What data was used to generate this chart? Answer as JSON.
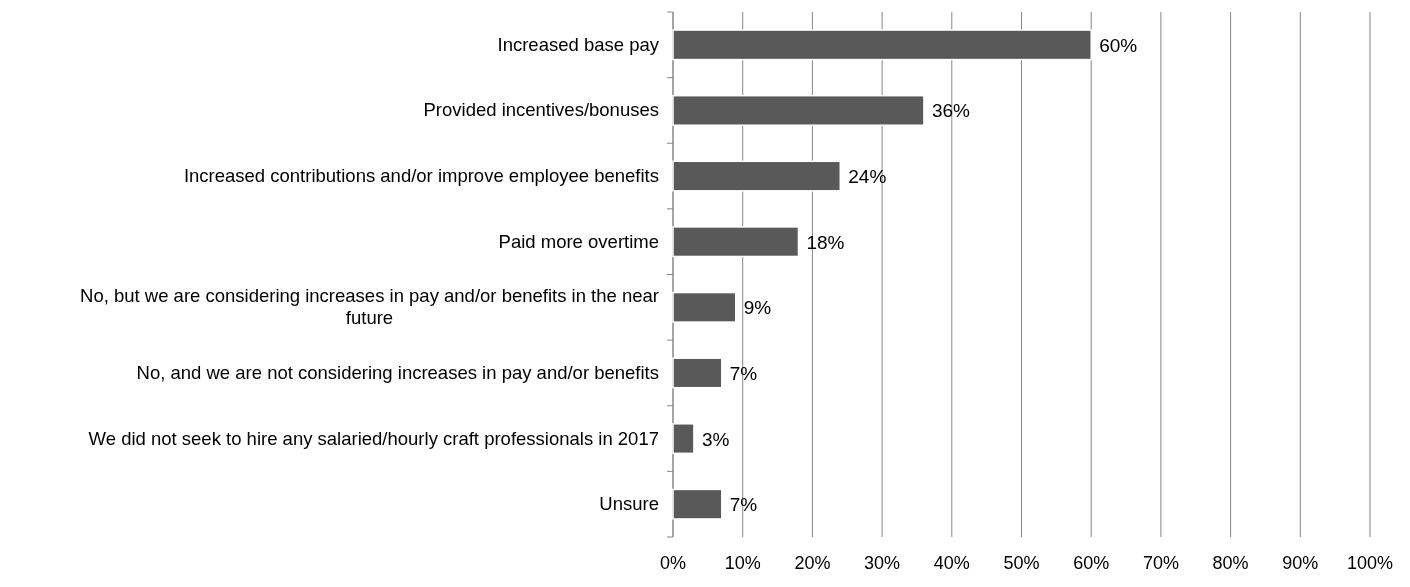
{
  "chart_data": {
    "type": "bar",
    "orientation": "horizontal",
    "categories": [
      "Increased base pay",
      "Provided incentives/bonuses",
      "Increased contributions and/or improve employee benefits",
      "Paid more overtime",
      "No, but we are considering increases in pay and/or benefits in the near future",
      "No, and we are not considering increases in pay and/or benefits",
      "We did not seek to hire any salaried/hourly craft professionals in 2017",
      "Unsure"
    ],
    "values": [
      60,
      36,
      24,
      18,
      9,
      7,
      3,
      7
    ],
    "value_labels": [
      "60%",
      "36%",
      "24%",
      "18%",
      "9%",
      "7%",
      "3%",
      "7%"
    ],
    "color": "#595959",
    "xlim": [
      0,
      100
    ],
    "xticks": [
      {
        "value": 0,
        "label": "0%"
      },
      {
        "value": 10,
        "label": "10%"
      },
      {
        "value": 20,
        "label": "20%"
      },
      {
        "value": 30,
        "label": "30%"
      },
      {
        "value": 40,
        "label": "40%"
      },
      {
        "value": 50,
        "label": "50%"
      },
      {
        "value": 60,
        "label": "60%"
      },
      {
        "value": 70,
        "label": "70%"
      },
      {
        "value": 80,
        "label": "80%"
      },
      {
        "value": 90,
        "label": "90%"
      },
      {
        "value": 100,
        "label": "100%"
      }
    ],
    "grid": "x"
  }
}
